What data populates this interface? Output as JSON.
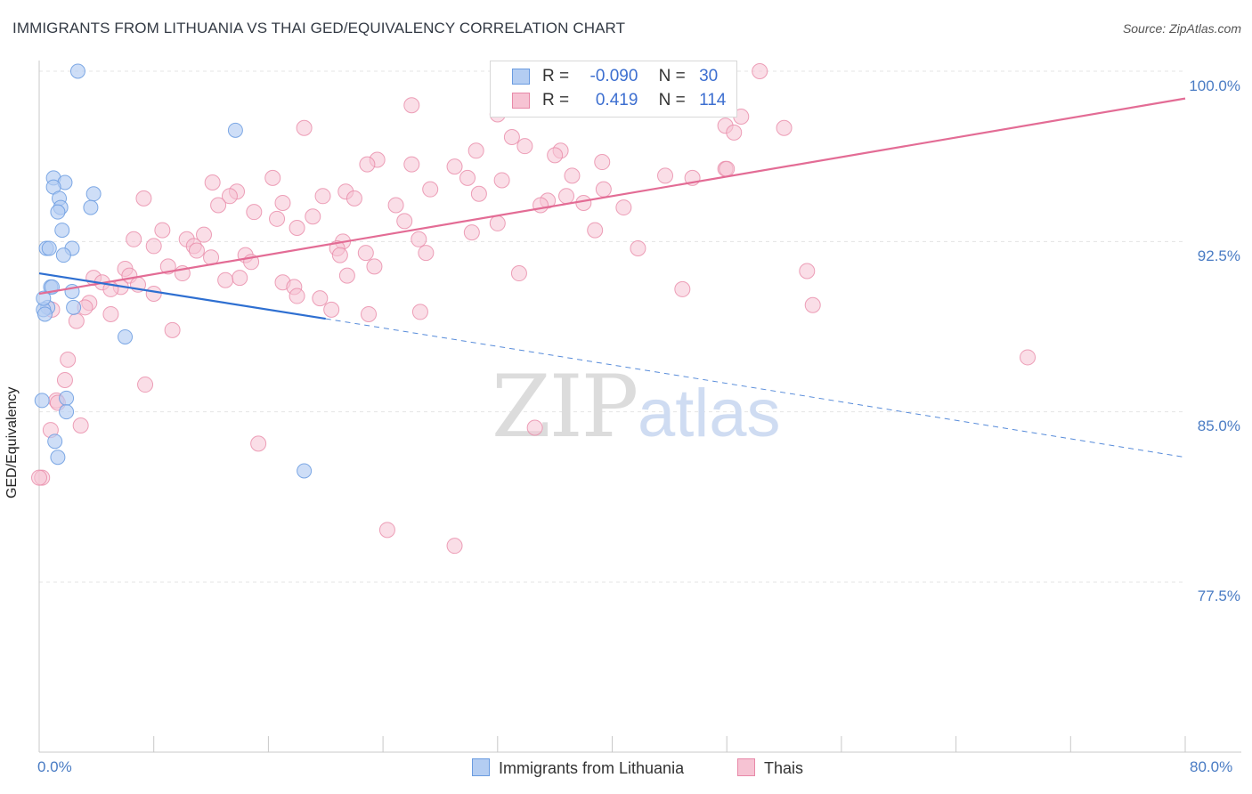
{
  "title": "IMMIGRANTS FROM LITHUANIA VS THAI GED/EQUIVALENCY CORRELATION CHART",
  "source": "Source: ZipAtlas.com",
  "watermark": {
    "zip": "ZIP",
    "atlas": "atlas"
  },
  "colors": {
    "blue": "#6a9be0",
    "blue_fill": "#b4cdf2",
    "blue_line": "#2e6fd1",
    "pink": "#e889a8",
    "pink_fill": "#f6c3d3",
    "pink_line": "#e36c95",
    "axis_text": "#4a7cc4",
    "grid": "#e4e4e4"
  },
  "legend": {
    "rows": [
      {
        "r_label": "R =",
        "r_value": "-0.090",
        "n_label": "N =",
        "n_value": "30"
      },
      {
        "r_label": "R =",
        "r_value": "0.419",
        "n_label": "N =",
        "n_value": "114"
      }
    ]
  },
  "bottom_legend": {
    "series1": "Immigrants from Lithuania",
    "series2": "Thais"
  },
  "chart_data": {
    "type": "scatter",
    "title": "IMMIGRANTS FROM LITHUANIA VS THAI GED/EQUIVALENCY CORRELATION CHART",
    "xlabel": "",
    "ylabel": "GED/Equivalency",
    "xlim": [
      0,
      80
    ],
    "ylim": [
      70.0,
      101.0
    ],
    "x_tick_labels": [
      "0.0%",
      "80.0%"
    ],
    "y_ticks": [
      77.5,
      85.0,
      92.5,
      100.0
    ],
    "y_tick_labels": [
      "77.5%",
      "85.0%",
      "92.5%",
      "100.0%"
    ],
    "series": [
      {
        "name": "Immigrants from Lithuania",
        "color": "#6a9be0",
        "r": -0.09,
        "n": 30,
        "trend": {
          "x0": 0,
          "y0": 91.1,
          "x1": 20,
          "y1": 89.1,
          "x_dash_end": 80,
          "y_dash_end": 83.0
        },
        "points": [
          [
            2.7,
            100.0
          ],
          [
            13.7,
            97.4
          ],
          [
            1.0,
            95.3
          ],
          [
            1.8,
            95.1
          ],
          [
            1.0,
            94.9
          ],
          [
            3.8,
            94.6
          ],
          [
            1.4,
            94.4
          ],
          [
            1.5,
            94.0
          ],
          [
            3.6,
            94.0
          ],
          [
            1.3,
            93.8
          ],
          [
            1.6,
            93.0
          ],
          [
            0.5,
            92.2
          ],
          [
            0.7,
            92.2
          ],
          [
            2.3,
            92.2
          ],
          [
            1.7,
            91.9
          ],
          [
            0.8,
            90.5
          ],
          [
            0.9,
            90.5
          ],
          [
            2.3,
            90.3
          ],
          [
            0.6,
            89.6
          ],
          [
            2.4,
            89.6
          ],
          [
            0.3,
            89.5
          ],
          [
            0.4,
            89.3
          ],
          [
            6.0,
            88.3
          ],
          [
            0.2,
            85.5
          ],
          [
            1.9,
            85.6
          ],
          [
            1.9,
            85.0
          ],
          [
            1.1,
            83.7
          ],
          [
            1.3,
            83.0
          ],
          [
            18.5,
            82.4
          ],
          [
            0.3,
            90.0
          ]
        ]
      },
      {
        "name": "Thais",
        "color": "#e889a8",
        "r": 0.419,
        "n": 114,
        "trend": {
          "x0": 0,
          "y0": 90.2,
          "x1": 80,
          "y1": 98.8
        },
        "points": [
          [
            50.3,
            100.0
          ],
          [
            26.0,
            98.5
          ],
          [
            32.0,
            98.1
          ],
          [
            49.0,
            98.0
          ],
          [
            18.5,
            97.5
          ],
          [
            47.9,
            97.6
          ],
          [
            52.0,
            97.5
          ],
          [
            48.5,
            97.3
          ],
          [
            33.9,
            96.7
          ],
          [
            33.0,
            97.1
          ],
          [
            36.4,
            96.5
          ],
          [
            23.6,
            96.1
          ],
          [
            22.9,
            95.9
          ],
          [
            26.0,
            95.9
          ],
          [
            39.3,
            96.0
          ],
          [
            29.0,
            95.8
          ],
          [
            47.9,
            95.7
          ],
          [
            37.2,
            95.4
          ],
          [
            43.7,
            95.4
          ],
          [
            16.3,
            95.3
          ],
          [
            12.1,
            95.1
          ],
          [
            29.9,
            95.3
          ],
          [
            32.3,
            95.2
          ],
          [
            27.3,
            94.8
          ],
          [
            21.4,
            94.7
          ],
          [
            39.4,
            94.8
          ],
          [
            13.8,
            94.7
          ],
          [
            13.3,
            94.5
          ],
          [
            19.8,
            94.5
          ],
          [
            30.7,
            94.6
          ],
          [
            35.5,
            94.3
          ],
          [
            22.0,
            94.4
          ],
          [
            36.8,
            94.5
          ],
          [
            7.3,
            94.4
          ],
          [
            17.0,
            94.2
          ],
          [
            12.5,
            94.1
          ],
          [
            24.9,
            94.1
          ],
          [
            35.0,
            94.1
          ],
          [
            15.0,
            93.8
          ],
          [
            19.1,
            93.6
          ],
          [
            25.5,
            93.4
          ],
          [
            32.0,
            93.3
          ],
          [
            8.6,
            93.0
          ],
          [
            18.0,
            93.1
          ],
          [
            38.8,
            93.0
          ],
          [
            30.2,
            92.9
          ],
          [
            11.5,
            92.8
          ],
          [
            6.6,
            92.6
          ],
          [
            10.3,
            92.6
          ],
          [
            26.5,
            92.6
          ],
          [
            21.2,
            92.5
          ],
          [
            8.0,
            92.3
          ],
          [
            10.8,
            92.3
          ],
          [
            11.0,
            92.1
          ],
          [
            20.8,
            92.2
          ],
          [
            41.8,
            92.2
          ],
          [
            21.0,
            91.9
          ],
          [
            27.0,
            92.0
          ],
          [
            14.4,
            91.9
          ],
          [
            22.8,
            92.0
          ],
          [
            12.0,
            91.8
          ],
          [
            14.8,
            91.6
          ],
          [
            23.4,
            91.4
          ],
          [
            9.0,
            91.4
          ],
          [
            6.0,
            91.3
          ],
          [
            10.0,
            91.1
          ],
          [
            6.3,
            91.0
          ],
          [
            53.6,
            91.2
          ],
          [
            33.5,
            91.1
          ],
          [
            21.5,
            91.0
          ],
          [
            14.0,
            90.9
          ],
          [
            13.0,
            90.8
          ],
          [
            3.8,
            90.9
          ],
          [
            17.0,
            90.7
          ],
          [
            4.4,
            90.7
          ],
          [
            17.8,
            90.5
          ],
          [
            6.9,
            90.6
          ],
          [
            5.7,
            90.5
          ],
          [
            5.0,
            90.4
          ],
          [
            44.9,
            90.4
          ],
          [
            19.6,
            90.0
          ],
          [
            18.0,
            90.1
          ],
          [
            3.5,
            89.8
          ],
          [
            20.4,
            89.5
          ],
          [
            23.0,
            89.3
          ],
          [
            26.6,
            89.4
          ],
          [
            5.0,
            89.3
          ],
          [
            0.9,
            89.5
          ],
          [
            54.0,
            89.7
          ],
          [
            2.6,
            89.0
          ],
          [
            9.3,
            88.6
          ],
          [
            69.0,
            87.4
          ],
          [
            2.0,
            87.3
          ],
          [
            7.4,
            86.2
          ],
          [
            1.8,
            86.4
          ],
          [
            1.2,
            85.5
          ],
          [
            1.3,
            85.4
          ],
          [
            0.8,
            84.2
          ],
          [
            2.9,
            84.4
          ],
          [
            34.6,
            84.3
          ],
          [
            15.3,
            83.6
          ],
          [
            0.2,
            82.1
          ],
          [
            0.0,
            82.1
          ],
          [
            24.3,
            79.8
          ],
          [
            29.0,
            79.1
          ],
          [
            3.2,
            89.6
          ],
          [
            16.6,
            93.5
          ],
          [
            38.0,
            94.2
          ],
          [
            45.6,
            95.3
          ],
          [
            30.5,
            96.5
          ],
          [
            36.0,
            96.3
          ],
          [
            48.0,
            95.7
          ],
          [
            40.8,
            94.0
          ],
          [
            8.0,
            90.2
          ]
        ]
      }
    ]
  }
}
